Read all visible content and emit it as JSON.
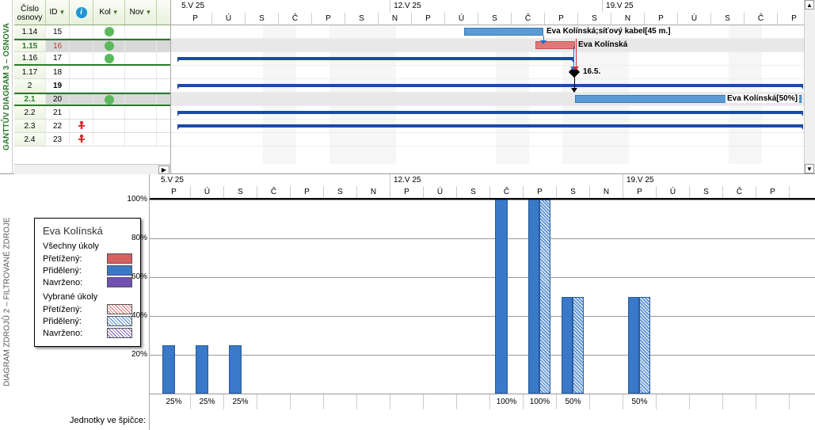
{
  "topLabel": "GANTTŮV DIAGRAM 3 – OSNOVA",
  "bottomLabel": "DIAGRAM ZDROJŮ 2 – FILTROVANÉ ZDROJE",
  "taskTable": {
    "headers": {
      "cislo": "Číslo osnovy",
      "id": "ID",
      "kol": "Kol",
      "nov": "Nov"
    },
    "rows": [
      {
        "cislo": "1.14",
        "id": "15",
        "info": true
      },
      {
        "cislo": "1.15",
        "id": "16",
        "info": true,
        "greenNum": true,
        "redId": true,
        "hl": true,
        "topBorder": true
      },
      {
        "cislo": "1.16",
        "id": "17",
        "info": true,
        "bottomBorder": true
      },
      {
        "cislo": "1.17",
        "id": "18"
      },
      {
        "cislo": "2",
        "id": "19",
        "boldId": true
      },
      {
        "cislo": "2.1",
        "id": "20",
        "info": true,
        "greenNum": true,
        "hl": true,
        "topBorder": true,
        "bottomBorder": true
      },
      {
        "cislo": "2.2",
        "id": "21"
      },
      {
        "cislo": "2.3",
        "id": "22",
        "person": true
      },
      {
        "cislo": "2.4",
        "id": "23",
        "person": true
      }
    ]
  },
  "timeline": {
    "weeks": [
      {
        "label": "5.V 25",
        "span": 7
      },
      {
        "label": "12.V 25",
        "span": 7
      },
      {
        "label": "19.V 25",
        "span": 7
      }
    ],
    "days": [
      "P",
      "Ú",
      "S",
      "Č",
      "P",
      "S",
      "N",
      "P",
      "Ú",
      "S",
      "Č",
      "P",
      "S",
      "N",
      "P",
      "Ú",
      "S",
      "Č",
      "P"
    ],
    "dayWidth": 42
  },
  "ganttBars": {
    "bar1": {
      "label": "Eva Kolínská;síťový kabel[45 m.]"
    },
    "bar2": {
      "label": "Eva Kolínská"
    },
    "milestone": {
      "label": "16.5."
    },
    "bar3": {
      "label": "Eva Kolínská[50%]"
    }
  },
  "legend": {
    "title": "Eva Kolínská",
    "section1": "Všechny úkoly",
    "section2": "Vybrané úkoly",
    "overloaded": "Přetížený:",
    "assigned": "Přidělený:",
    "proposed": "Navrženo:"
  },
  "unitsLabel": "Jednotky ve špičce:",
  "yAxis": [
    "100%",
    "80%",
    "60%",
    "40%",
    "20%"
  ],
  "resourceBars": [
    {
      "day": 0,
      "pct": 25,
      "solid": true,
      "unit": "25%"
    },
    {
      "day": 1,
      "pct": 25,
      "solid": true,
      "unit": "25%"
    },
    {
      "day": 2,
      "pct": 25,
      "solid": true,
      "unit": "25%"
    },
    {
      "day": 10,
      "pct": 100,
      "solid": true,
      "unit": "100%"
    },
    {
      "day": 11,
      "pct": 100,
      "both": true,
      "unit": "100%"
    },
    {
      "day": 12,
      "pct": 50,
      "both": true,
      "unit": "50%"
    },
    {
      "day": 14,
      "pct": 50,
      "both": true,
      "unit": "50%"
    }
  ]
}
